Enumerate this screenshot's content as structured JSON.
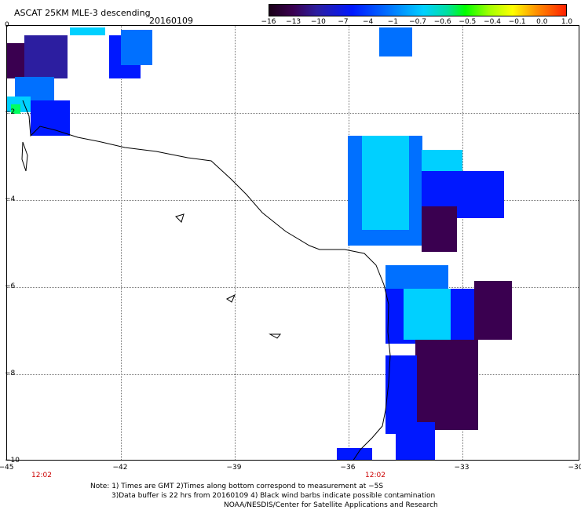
{
  "header": {
    "title": "ASCAT 25KM MLE-3 descending",
    "date": "20160109"
  },
  "colorbar": {
    "ticks": [
      "−16",
      "−13",
      "−10",
      "−7",
      "−4",
      "−1",
      "−0.7",
      "−0.6",
      "−0.5",
      "−0.4",
      "−0.1",
      "0.0",
      "1.0"
    ]
  },
  "axes": {
    "x_ticks": [
      "−45",
      "−42",
      "−39",
      "−36",
      "−33",
      "−30"
    ],
    "y_ticks": [
      "0",
      "−2",
      "−4",
      "−6",
      "−8",
      "−10"
    ]
  },
  "times": [
    "12:02",
    "12:02"
  ],
  "notes": {
    "line1": "Note: 1) Times are GMT 2)Times along bottom correspond to measurement at −5S",
    "line2": "3)Data buffer is 22 hrs from 20160109 4) Black wind barbs indicate possible contamination",
    "line3": "NOAA/NESDIS/Center for Satellite Applications and Research"
  },
  "colors": {
    "deep_purple": "#3a0050",
    "dark_blue": "#2c1ea0",
    "blue": "#0018ff",
    "sky": "#0070ff",
    "cyan": "#00d0ff",
    "green": "#00ff60"
  }
}
